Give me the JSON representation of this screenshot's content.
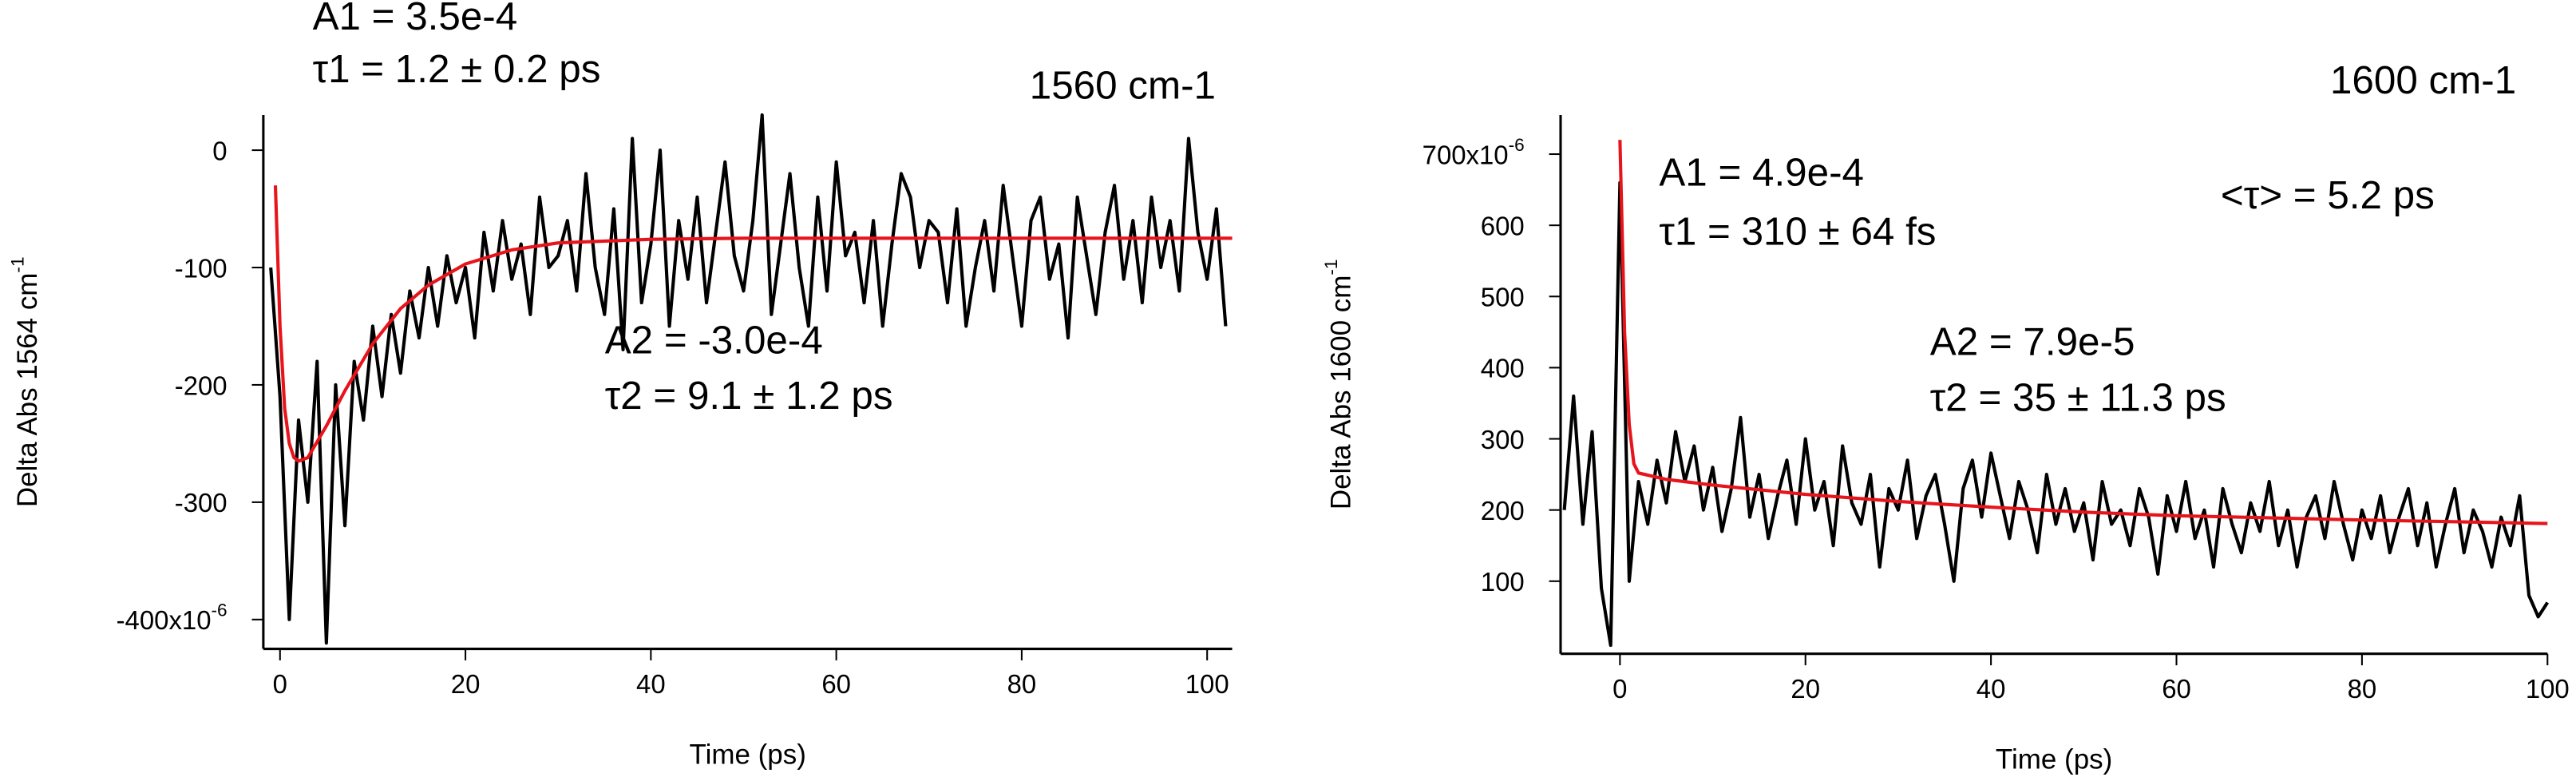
{
  "chart_data": [
    {
      "type": "line",
      "title": "1560 cm-1",
      "xlabel": "Time (ps)",
      "ylabel": "Delta Abs 1564 cm",
      "ylabel_sup": "-1",
      "xlim": [
        -1.8,
        102.7
      ],
      "ylim": [
        -425,
        30
      ],
      "xticks": [
        0,
        20,
        40,
        60,
        80,
        100
      ],
      "yticks": [
        {
          "value": -400,
          "label": "-400x10",
          "exponent": "-6"
        },
        -300,
        -200,
        -100,
        0
      ],
      "annotations": [
        "A1 = 3.5e-4",
        "τ1 = 1.2 ± 0.2 ps",
        "A2 = -3.0e-4",
        "τ2 = 9.1 ± 1.2 ps"
      ],
      "series": [
        {
          "color": "#000000",
          "x": [
            -1,
            0,
            1,
            2,
            3,
            4,
            5,
            6,
            7,
            8,
            9,
            10,
            11,
            12,
            13,
            14,
            15,
            16,
            17,
            18,
            19,
            20,
            21,
            22,
            23,
            24,
            25,
            26,
            27,
            28,
            29,
            30,
            31,
            32,
            33,
            34,
            35,
            36,
            37,
            38,
            39,
            40,
            41,
            42,
            43,
            44,
            45,
            46,
            47,
            48,
            49,
            50,
            51,
            52,
            53,
            54,
            55,
            56,
            57,
            58,
            59,
            60,
            61,
            62,
            63,
            64,
            65,
            66,
            67,
            68,
            69,
            70,
            71,
            72,
            73,
            74,
            75,
            76,
            77,
            78,
            79,
            80,
            81,
            82,
            83,
            84,
            85,
            86,
            87,
            88,
            89,
            90,
            91,
            92,
            93,
            94,
            95,
            96,
            97,
            98,
            99,
            100,
            101,
            102
          ],
          "values": [
            -100,
            -210,
            -400,
            -230,
            -300,
            -180,
            -420,
            -200,
            -320,
            -180,
            -230,
            -150,
            -210,
            -140,
            -190,
            -120,
            -160,
            -100,
            -150,
            -90,
            -130,
            -100,
            -160,
            -70,
            -120,
            -60,
            -110,
            -80,
            -140,
            -40,
            -100,
            -90,
            -60,
            -120,
            -20,
            -100,
            -140,
            -50,
            -170,
            10,
            -130,
            -80,
            0,
            -150,
            -60,
            -110,
            -40,
            -130,
            -70,
            -10,
            -90,
            -120,
            -60,
            30,
            -140,
            -80,
            -20,
            -100,
            -150,
            -40,
            -120,
            -10,
            -90,
            -70,
            -130,
            -60,
            -150,
            -80,
            -20,
            -40,
            -100,
            -60,
            -70,
            -130,
            -50,
            -150,
            -100,
            -60,
            -120,
            -30,
            -90,
            -150,
            -60,
            -40,
            -110,
            -80,
            -160,
            -40,
            -90,
            -140,
            -70,
            -30,
            -110,
            -60,
            -130,
            -40,
            -100,
            -60,
            -120,
            10,
            -70,
            -110,
            -50,
            -150
          ]
        },
        {
          "color": "#e8141b",
          "x": [
            -0.5,
            0,
            0.5,
            1,
            1.5,
            2,
            3,
            5,
            7,
            10,
            13,
            16,
            20,
            25,
            30,
            40,
            50,
            70,
            102.7
          ],
          "values": [
            -30,
            -150,
            -220,
            -250,
            -262,
            -265,
            -262,
            -235,
            -205,
            -165,
            -135,
            -115,
            -97,
            -85,
            -79,
            -76,
            -75,
            -75,
            -75
          ]
        }
      ]
    },
    {
      "type": "line",
      "title": "1600 cm-1",
      "xlabel": "Time (ps)",
      "ylabel": "Delta Abs 1600 cm",
      "ylabel_sup": "-1",
      "xlim": [
        -6.4,
        100
      ],
      "ylim": [
        -2,
        755
      ],
      "xticks": [
        0,
        20,
        40,
        60,
        80,
        100
      ],
      "yticks": [
        100,
        200,
        300,
        400,
        500,
        600,
        {
          "value": 700,
          "label": "700x10",
          "exponent": "-6"
        }
      ],
      "annotations": [
        "A1 = 4.9e-4",
        "τ1 = 310 ± 64 fs",
        "<τ> = 5.2 ps",
        "A2 = 7.9e-5",
        "τ2 = 35 ± 11.3 ps"
      ],
      "series": [
        {
          "color": "#000000",
          "x": [
            -6,
            -5,
            -4,
            -3,
            -2,
            -1,
            0,
            1,
            2,
            3,
            4,
            5,
            6,
            7,
            8,
            9,
            10,
            11,
            12,
            13,
            14,
            15,
            16,
            17,
            18,
            19,
            20,
            21,
            22,
            23,
            24,
            25,
            26,
            27,
            28,
            29,
            30,
            31,
            32,
            33,
            34,
            35,
            36,
            37,
            38,
            39,
            40,
            41,
            42,
            43,
            44,
            45,
            46,
            47,
            48,
            49,
            50,
            51,
            52,
            53,
            54,
            55,
            56,
            57,
            58,
            59,
            60,
            61,
            62,
            63,
            64,
            65,
            66,
            67,
            68,
            69,
            70,
            71,
            72,
            73,
            74,
            75,
            76,
            77,
            78,
            79,
            80,
            81,
            82,
            83,
            84,
            85,
            86,
            87,
            88,
            89,
            90,
            91,
            92,
            93,
            94,
            95,
            96,
            97,
            98,
            99,
            100
          ],
          "values": [
            200,
            360,
            180,
            310,
            90,
            10,
            660,
            100,
            240,
            180,
            270,
            210,
            310,
            240,
            290,
            200,
            260,
            170,
            230,
            330,
            190,
            250,
            160,
            220,
            270,
            180,
            300,
            200,
            240,
            150,
            290,
            210,
            180,
            250,
            120,
            230,
            200,
            270,
            160,
            220,
            250,
            180,
            100,
            230,
            270,
            190,
            280,
            220,
            160,
            240,
            200,
            140,
            250,
            180,
            230,
            170,
            210,
            130,
            240,
            180,
            200,
            150,
            230,
            190,
            110,
            220,
            170,
            240,
            160,
            200,
            120,
            230,
            180,
            140,
            210,
            170,
            240,
            150,
            200,
            120,
            190,
            220,
            160,
            240,
            180,
            130,
            200,
            160,
            220,
            140,
            190,
            230,
            150,
            210,
            120,
            180,
            230,
            140,
            200,
            170,
            120,
            190,
            150,
            220,
            80,
            50,
            70
          ]
        },
        {
          "color": "#e8141b",
          "x": [
            0,
            0.5,
            1,
            1.5,
            2,
            5,
            10,
            20,
            30,
            40,
            50,
            60,
            80,
            100
          ],
          "values": [
            720,
            450,
            320,
            265,
            252,
            243,
            235,
            222,
            212,
            204,
            197,
            192,
            186,
            181
          ]
        }
      ]
    }
  ]
}
